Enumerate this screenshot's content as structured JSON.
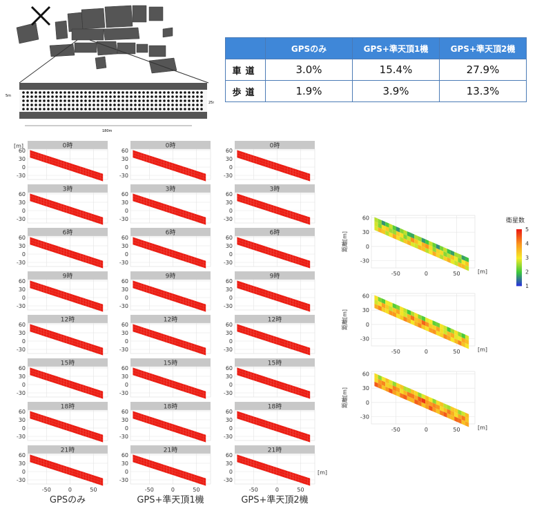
{
  "map": {
    "scale_5m": "5m",
    "scale_25m": "25m",
    "scale_180m": "180m"
  },
  "table": {
    "headers": [
      "",
      "GPSのみ",
      "GPS+準天頂1機",
      "GPS+準天頂2機"
    ],
    "rows": [
      {
        "label": "車道",
        "values": [
          "3.0%",
          "15.4%",
          "27.9%"
        ]
      },
      {
        "label": "歩道",
        "values": [
          "1.9%",
          "3.9%",
          "13.3%"
        ]
      }
    ]
  },
  "chart_data": {
    "type": "heatmap",
    "description_units": {
      "x_unit": "[m]",
      "y_unit": "[m]"
    },
    "columns": [
      "GPSのみ",
      "GPS+準天頂1機",
      "GPS+準天頂2機"
    ],
    "panel_titles": [
      "0時",
      "3時",
      "6時",
      "9時",
      "12時",
      "15時",
      "18時",
      "21時"
    ],
    "x_ticks": [
      -50,
      0,
      50
    ],
    "y_ticks": [
      60,
      30,
      0,
      -30
    ],
    "xlim": [
      -90,
      80
    ],
    "ylim": [
      -45,
      65
    ],
    "panel_colors": [
      [
        [
          3.3,
          1.2,
          1.2
        ],
        [
          3.8,
          4.6,
          4.9
        ],
        [
          2.0,
          2.5,
          2.3
        ],
        [
          3.5,
          3.6,
          3.7
        ],
        [
          3.0,
          3.2,
          3.2
        ],
        [
          2.9,
          3.1,
          3.2
        ],
        [
          1.3,
          1.5,
          2.3
        ],
        [
          3.4,
          3.8,
          4.6
        ]
      ],
      [
        [
          3.2,
          3.6,
          4.6
        ],
        [
          3.6,
          4.7,
          4.8
        ],
        [
          2.2,
          2.6,
          3.0
        ],
        [
          3.3,
          3.6,
          3.7
        ],
        [
          3.0,
          3.2,
          3.3
        ],
        [
          2.8,
          3.1,
          3.1
        ],
        [
          1.6,
          1.8,
          2.6
        ],
        [
          3.3,
          3.7,
          4.5
        ]
      ],
      [
        [
          3.1,
          3.3,
          4.5
        ],
        [
          3.4,
          4.5,
          4.7
        ],
        [
          1.4,
          2.5,
          2.8
        ],
        [
          3.4,
          3.6,
          3.8
        ],
        [
          3.0,
          3.2,
          3.3
        ],
        [
          2.9,
          3.0,
          3.1
        ],
        [
          1.2,
          1.4,
          2.8
        ],
        [
          3.2,
          3.6,
          4.6
        ]
      ]
    ],
    "satellite_count_legend": {
      "title": "衛星数",
      "ticks": [
        5,
        4,
        3,
        2,
        1
      ],
      "range": [
        1,
        5
      ]
    },
    "right_panels": {
      "y_label": "距離[m]",
      "x_unit": "[m]",
      "x_ticks": [
        -50,
        0,
        50
      ],
      "y_ticks": [
        60,
        30,
        0,
        -30
      ],
      "panel_levels": [
        2.9,
        3.3,
        3.7
      ]
    },
    "bottom_labels": [
      "GPSのみ",
      "GPS+準天頂1機",
      "GPS+準天頂2機"
    ]
  }
}
